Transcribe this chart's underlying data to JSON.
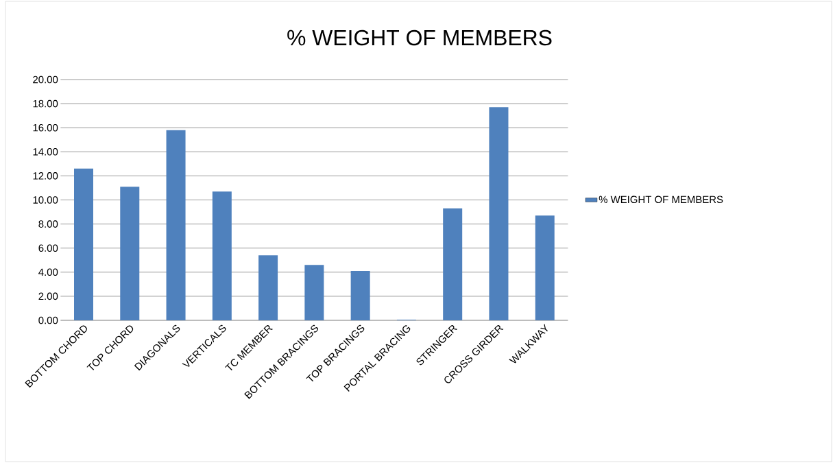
{
  "chart_data": {
    "type": "bar",
    "title": "% WEIGHT OF MEMBERS",
    "categories": [
      "BOTTOM CHORD",
      "TOP CHORD",
      "DIAGONALS",
      "VERTICALS",
      "TC MEMBER",
      "BOTTOM BRACINGS",
      "TOP BRACINGS",
      "PORTAL BRACING",
      "STRINGER",
      "CROSS GIRDER",
      "WALKWAY"
    ],
    "series": [
      {
        "name": "% WEIGHT OF MEMBERS",
        "color": "#4f81bd",
        "values": [
          12.6,
          11.1,
          15.8,
          10.7,
          5.4,
          4.6,
          4.1,
          0.05,
          9.3,
          17.7,
          8.7
        ]
      }
    ],
    "ylim": [
      0,
      20
    ],
    "yticks": [
      {
        "value": 0,
        "label": "0.00"
      },
      {
        "value": 2,
        "label": "2.00"
      },
      {
        "value": 4,
        "label": "4.00"
      },
      {
        "value": 6,
        "label": "6.00"
      },
      {
        "value": 8,
        "label": "8.00"
      },
      {
        "value": 10,
        "label": "10.00"
      },
      {
        "value": 12,
        "label": "12.00"
      },
      {
        "value": 14,
        "label": "14.00"
      },
      {
        "value": 16,
        "label": "16.00"
      },
      {
        "value": 18,
        "label": "18.00"
      },
      {
        "value": 20,
        "label": "20.00"
      }
    ],
    "grid": "y",
    "legend": "right"
  }
}
